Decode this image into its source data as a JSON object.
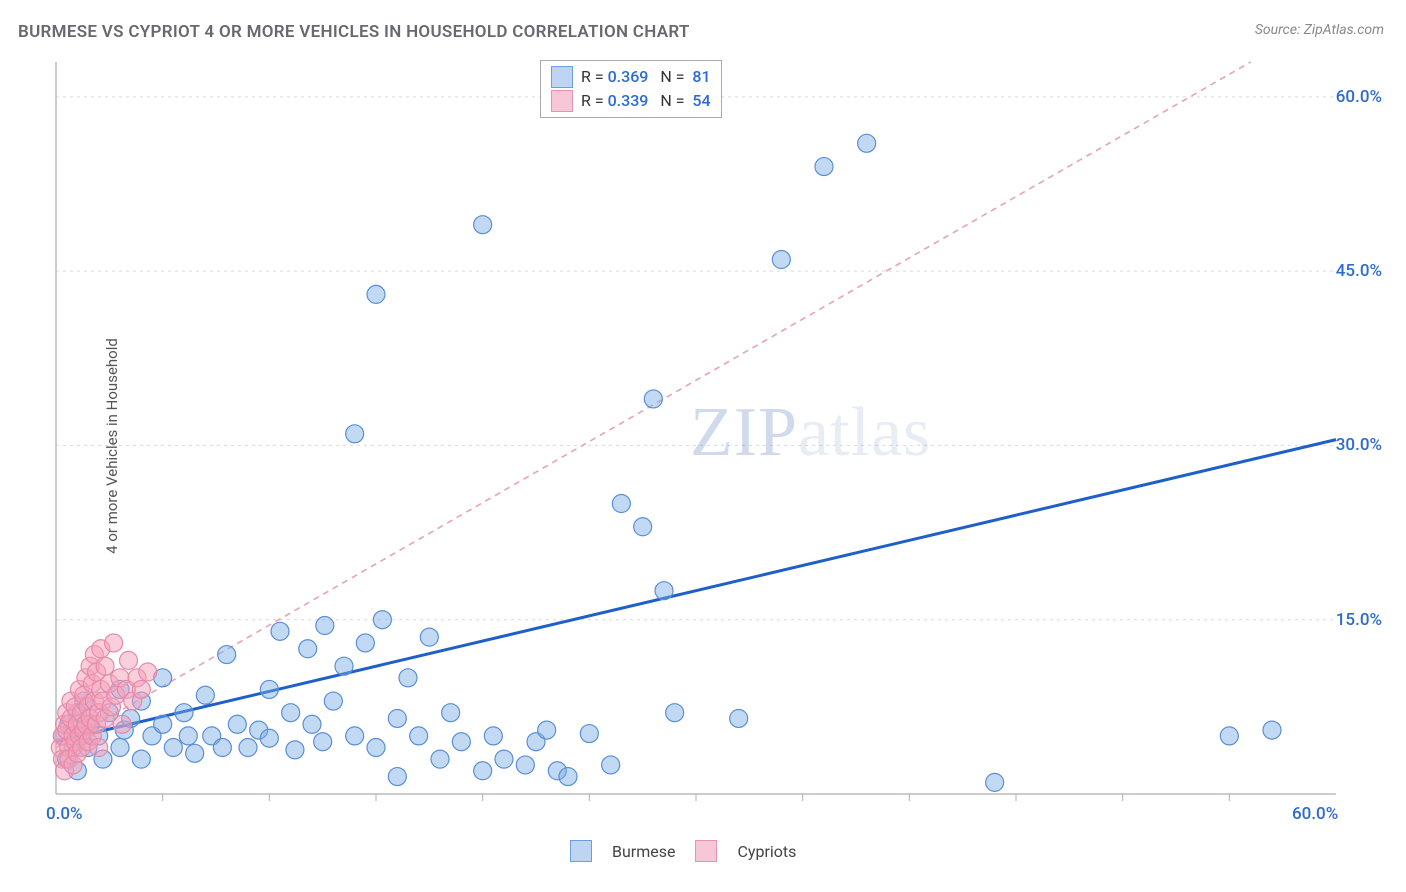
{
  "title": "BURMESE VS CYPRIOT 4 OR MORE VEHICLES IN HOUSEHOLD CORRELATION CHART",
  "source": "Source: ZipAtlas.com",
  "y_axis_label": "4 or more Vehicles in Household",
  "watermark": {
    "part1": "ZIP",
    "part2": "atlas"
  },
  "chart": {
    "type": "scatter",
    "xlim": [
      0,
      60
    ],
    "ylim": [
      0,
      63
    ],
    "x_origin_label": "0.0%",
    "x_max_label": "60.0%",
    "y_ticks": [
      {
        "v": 15,
        "label": "15.0%"
      },
      {
        "v": 30,
        "label": "30.0%"
      },
      {
        "v": 45,
        "label": "45.0%"
      },
      {
        "v": 60,
        "label": "60.0%"
      }
    ],
    "x_minor_ticks": [
      5,
      10,
      15,
      20,
      25,
      30,
      35,
      40,
      45,
      50,
      55
    ],
    "grid_color": "#d7d9dc",
    "axis_color": "#b9bcc0",
    "background_color": "#ffffff",
    "marker_radius": 9,
    "marker_stroke_width": 1.2,
    "series": [
      {
        "name": "Burmese",
        "fill": "rgba(120,170,230,0.45)",
        "stroke": "#5a8fd6",
        "swatch_fill": "#bdd5f2",
        "swatch_border": "#6a9fe0",
        "R": "0.369",
        "N": "81",
        "trend": {
          "x1": 0,
          "y1": 4.5,
          "x2": 60,
          "y2": 30.5,
          "color": "#1e5fc9",
          "width": 3,
          "dash": ""
        },
        "points": [
          [
            0.3,
            5
          ],
          [
            0.5,
            3
          ],
          [
            0.6,
            6
          ],
          [
            0.8,
            4
          ],
          [
            1,
            7
          ],
          [
            1,
            2
          ],
          [
            1.2,
            5
          ],
          [
            1.3,
            8
          ],
          [
            1.5,
            4
          ],
          [
            1.6,
            6
          ],
          [
            2,
            5
          ],
          [
            2.2,
            3
          ],
          [
            2.5,
            7
          ],
          [
            3,
            4
          ],
          [
            3,
            9
          ],
          [
            3.2,
            5.5
          ],
          [
            3.5,
            6.5
          ],
          [
            4,
            3
          ],
          [
            4,
            8
          ],
          [
            4.5,
            5
          ],
          [
            5,
            6
          ],
          [
            5,
            10
          ],
          [
            5.5,
            4
          ],
          [
            6,
            7
          ],
          [
            6.2,
            5
          ],
          [
            6.5,
            3.5
          ],
          [
            7,
            8.5
          ],
          [
            7.3,
            5
          ],
          [
            7.8,
            4
          ],
          [
            8,
            12
          ],
          [
            8.5,
            6
          ],
          [
            9,
            4
          ],
          [
            9.5,
            5.5
          ],
          [
            10,
            9
          ],
          [
            10,
            4.8
          ],
          [
            10.5,
            14
          ],
          [
            11,
            7
          ],
          [
            11.2,
            3.8
          ],
          [
            11.8,
            12.5
          ],
          [
            12,
            6
          ],
          [
            12.5,
            4.5
          ],
          [
            12.6,
            14.5
          ],
          [
            13,
            8
          ],
          [
            13.5,
            11
          ],
          [
            14,
            5
          ],
          [
            14.5,
            13
          ],
          [
            15,
            4
          ],
          [
            15.3,
            15
          ],
          [
            16,
            6.5
          ],
          [
            16,
            1.5
          ],
          [
            16.5,
            10
          ],
          [
            17,
            5
          ],
          [
            17.5,
            13.5
          ],
          [
            18,
            3
          ],
          [
            18.5,
            7
          ],
          [
            19,
            4.5
          ],
          [
            20,
            2
          ],
          [
            20.5,
            5
          ],
          [
            21,
            3
          ],
          [
            22,
            2.5
          ],
          [
            22.5,
            4.5
          ],
          [
            23,
            5.5
          ],
          [
            23.5,
            2
          ],
          [
            24,
            1.5
          ],
          [
            25,
            5.2
          ],
          [
            26,
            2.5
          ],
          [
            26.5,
            25
          ],
          [
            27.5,
            23
          ],
          [
            28,
            34
          ],
          [
            28.5,
            17.5
          ],
          [
            29,
            7
          ],
          [
            32,
            6.5
          ],
          [
            15,
            43
          ],
          [
            14,
            31
          ],
          [
            20,
            49
          ],
          [
            34,
            46
          ],
          [
            36,
            54
          ],
          [
            38,
            56
          ],
          [
            44,
            1
          ],
          [
            55,
            5
          ],
          [
            57,
            5.5
          ]
        ]
      },
      {
        "name": "Cypriots",
        "fill": "rgba(245,160,185,0.50)",
        "stroke": "#e68aa8",
        "swatch_fill": "#f6c7d6",
        "swatch_border": "#e892ae",
        "R": "0.339",
        "N": "54",
        "trend": {
          "x1": 0,
          "y1": 4,
          "x2": 56,
          "y2": 63,
          "color": "#e8a2b8",
          "width": 1.6,
          "dash": "6 5"
        },
        "points": [
          [
            0.2,
            4
          ],
          [
            0.3,
            5
          ],
          [
            0.3,
            3
          ],
          [
            0.4,
            6
          ],
          [
            0.4,
            2
          ],
          [
            0.5,
            5.5
          ],
          [
            0.5,
            7
          ],
          [
            0.6,
            4
          ],
          [
            0.6,
            3
          ],
          [
            0.7,
            6.5
          ],
          [
            0.7,
            8
          ],
          [
            0.8,
            5
          ],
          [
            0.8,
            2.5
          ],
          [
            0.9,
            7.5
          ],
          [
            0.9,
            4.5
          ],
          [
            1,
            6
          ],
          [
            1,
            3.5
          ],
          [
            1.1,
            5
          ],
          [
            1.1,
            9
          ],
          [
            1.2,
            7
          ],
          [
            1.2,
            4
          ],
          [
            1.3,
            8.5
          ],
          [
            1.3,
            5.5
          ],
          [
            1.4,
            6
          ],
          [
            1.4,
            10
          ],
          [
            1.5,
            4.5
          ],
          [
            1.5,
            7.5
          ],
          [
            1.6,
            11
          ],
          [
            1.6,
            6.5
          ],
          [
            1.7,
            5
          ],
          [
            1.7,
            9.5
          ],
          [
            1.8,
            8
          ],
          [
            1.8,
            12
          ],
          [
            1.9,
            6
          ],
          [
            1.9,
            10.5
          ],
          [
            2,
            7
          ],
          [
            2,
            4
          ],
          [
            2.1,
            9
          ],
          [
            2.1,
            12.5
          ],
          [
            2.2,
            8
          ],
          [
            2.3,
            6.5
          ],
          [
            2.3,
            11
          ],
          [
            2.5,
            9.5
          ],
          [
            2.6,
            7.5
          ],
          [
            2.7,
            13
          ],
          [
            2.8,
            8.5
          ],
          [
            3,
            10
          ],
          [
            3.1,
            6
          ],
          [
            3.3,
            9
          ],
          [
            3.4,
            11.5
          ],
          [
            3.6,
            8
          ],
          [
            3.8,
            10
          ],
          [
            4,
            9
          ],
          [
            4.3,
            10.5
          ]
        ]
      }
    ]
  },
  "legend_bottom": [
    {
      "label": "Burmese",
      "fill": "#bdd5f2",
      "border": "#6a9fe0"
    },
    {
      "label": "Cypriots",
      "fill": "#f6c7d6",
      "border": "#e892ae"
    }
  ]
}
